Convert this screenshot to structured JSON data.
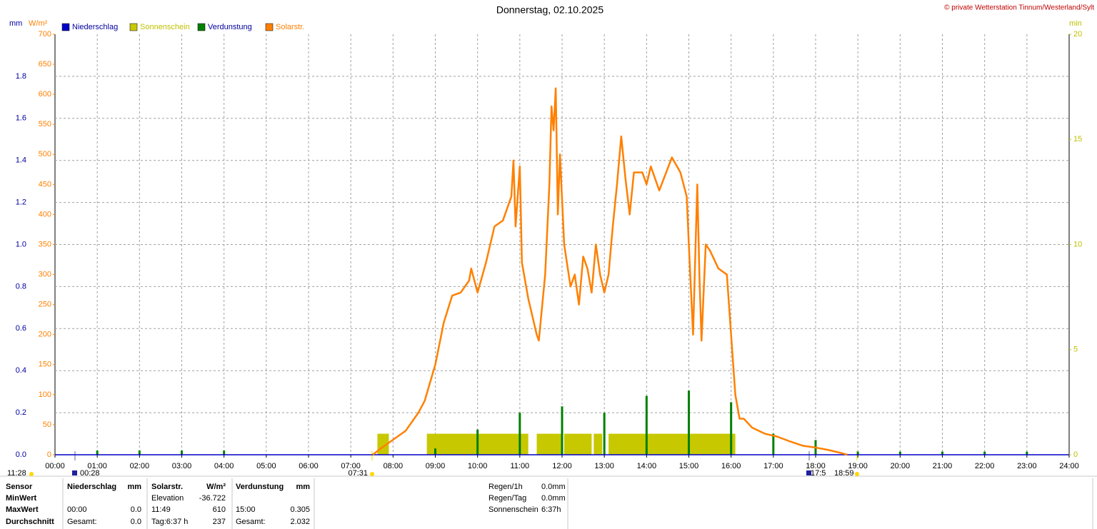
{
  "chart_data": {
    "type": "line",
    "title": "Donnerstag, 02.10.2025",
    "copyright": "© private Wetterstation Tinnum/Westerland/Sylt",
    "y3_unit": "mm",
    "y_unit": "W/m²",
    "y2_unit": "min",
    "xlim": [
      0,
      24
    ],
    "xticks": [
      {
        "value": 0,
        "label": "00:00"
      },
      {
        "value": 1,
        "label": "01:00"
      },
      {
        "value": 2,
        "label": "02:00"
      },
      {
        "value": 3,
        "label": "03:00"
      },
      {
        "value": 4,
        "label": "04:00"
      },
      {
        "value": 5,
        "label": "05:00"
      },
      {
        "value": 6,
        "label": "06:00"
      },
      {
        "value": 7,
        "label": "07:00"
      },
      {
        "value": 8,
        "label": "08:00"
      },
      {
        "value": 9,
        "label": "09:00"
      },
      {
        "value": 10,
        "label": "10:00"
      },
      {
        "value": 11,
        "label": "11:00"
      },
      {
        "value": 12,
        "label": "12:00"
      },
      {
        "value": 13,
        "label": "13:00"
      },
      {
        "value": 14,
        "label": "14:00"
      },
      {
        "value": 15,
        "label": "15:00"
      },
      {
        "value": 16,
        "label": "16:00"
      },
      {
        "value": 17,
        "label": "17:00"
      },
      {
        "value": 18,
        "label": "18:00"
      },
      {
        "value": 19,
        "label": "19:00"
      },
      {
        "value": 20,
        "label": "20:00"
      },
      {
        "value": 21,
        "label": "21:00"
      },
      {
        "value": 22,
        "label": "22:00"
      },
      {
        "value": 23,
        "label": "23:00"
      },
      {
        "value": 24,
        "label": "24:00"
      }
    ],
    "ylim": [
      0,
      700
    ],
    "yticks": [
      0,
      50,
      100,
      150,
      200,
      250,
      300,
      350,
      400,
      450,
      500,
      550,
      600,
      650,
      700
    ],
    "y2lim": [
      0,
      20
    ],
    "y2ticks": [
      0,
      5,
      10,
      15,
      20
    ],
    "y3lim": [
      0,
      2
    ],
    "y3ticks": [
      {
        "value": 0,
        "label": "0.0"
      },
      0.2,
      0.4,
      0.6,
      0.8,
      {
        "value": 1,
        "label": "1.0"
      },
      1.2,
      1.4,
      1.6,
      1.8
    ],
    "grid": true,
    "series": [
      {
        "name": "Niederschlag",
        "color": "#0000c8",
        "label_color": "#0000a0",
        "axis": "y3",
        "mark": "line",
        "x": [
          0,
          24
        ],
        "values": [
          0,
          0
        ]
      },
      {
        "name": "Sonnenschein",
        "color": "#c8c800",
        "label_color": "#c0c000",
        "axis": "y2",
        "mark": "block",
        "x": [
          7.63,
          8.8,
          11.4,
          12.05,
          12.75,
          13.1
        ],
        "x_end": [
          7.9,
          11.2,
          12.0,
          12.7,
          12.95,
          16.1
        ],
        "values": [
          1,
          1,
          1,
          1,
          1,
          1
        ]
      },
      {
        "name": "Verdunstung",
        "color": "#008000",
        "label_color": "#0000a0",
        "axis": "y3",
        "mark": "spike",
        "x": [
          1,
          2,
          3,
          4,
          9,
          10,
          11,
          12,
          13,
          14,
          15,
          16,
          17,
          18,
          19,
          20,
          21,
          22,
          23
        ],
        "values": [
          0.02,
          0.02,
          0.02,
          0.02,
          0.03,
          0.12,
          0.2,
          0.23,
          0.2,
          0.28,
          0.305,
          0.25,
          0.1,
          0.07,
          0.015,
          0.015,
          0.015,
          0.015,
          0.015
        ]
      },
      {
        "name": "Solarstr.",
        "color": "#ff8000",
        "label_color": "#ff8000",
        "axis": "y",
        "mark": "line",
        "x": [
          7.52,
          7.7,
          8.0,
          8.3,
          8.6,
          8.75,
          9.0,
          9.2,
          9.4,
          9.6,
          9.8,
          9.85,
          10.0,
          10.2,
          10.4,
          10.6,
          10.8,
          10.85,
          10.9,
          11.0,
          11.05,
          11.2,
          11.4,
          11.45,
          11.6,
          11.7,
          11.75,
          11.8,
          11.85,
          11.9,
          11.95,
          12.05,
          12.2,
          12.3,
          12.4,
          12.5,
          12.6,
          12.7,
          12.8,
          12.9,
          13.0,
          13.1,
          13.2,
          13.3,
          13.4,
          13.5,
          13.6,
          13.7,
          13.9,
          14.0,
          14.1,
          14.3,
          14.6,
          14.8,
          14.95,
          15.0,
          15.1,
          15.2,
          15.25,
          15.3,
          15.4,
          15.5,
          15.7,
          15.9,
          16.0,
          16.1,
          16.2,
          16.3,
          16.5,
          16.8,
          17.1,
          17.4,
          17.7,
          18.0,
          18.3,
          18.6,
          18.75
        ],
        "values": [
          0,
          10,
          25,
          40,
          70,
          90,
          150,
          220,
          265,
          270,
          290,
          310,
          270,
          320,
          380,
          390,
          430,
          490,
          380,
          480,
          320,
          260,
          200,
          190,
          300,
          450,
          580,
          540,
          610,
          400,
          500,
          350,
          280,
          300,
          250,
          330,
          310,
          270,
          350,
          300,
          270,
          300,
          380,
          450,
          530,
          460,
          400,
          470,
          470,
          450,
          480,
          440,
          495,
          470,
          430,
          350,
          200,
          450,
          300,
          190,
          350,
          340,
          310,
          300,
          200,
          100,
          60,
          60,
          45,
          35,
          30,
          22,
          15,
          12,
          8,
          3,
          0
        ]
      }
    ]
  },
  "footer": {
    "markers": [
      "11:28",
      "00:28",
      "07:31",
      "17:5",
      "18:59"
    ],
    "table": {
      "rows": [
        [
          "Sensor",
          "Niederschlag",
          "mm",
          "Solarstr.",
          "W/m²",
          "Verdunstung",
          "mm"
        ],
        [
          "MinWert",
          null,
          null,
          "Elevation",
          "-36.722",
          null,
          null
        ],
        [
          "MaxWert",
          "00:00",
          "0.0",
          "11:49",
          "610",
          "15:00",
          "0.305"
        ],
        [
          "Durchschnitt",
          "Gesamt:",
          "0.0",
          "Tag:6:37 h",
          "237",
          "Gesamt:",
          "2.032"
        ]
      ]
    },
    "summary": {
      "rows": [
        [
          "Regen/1h",
          "0.0mm"
        ],
        [
          "Regen/Tag",
          "0.0mm"
        ],
        [
          "Sonnenschein",
          "6:37h"
        ]
      ]
    }
  }
}
